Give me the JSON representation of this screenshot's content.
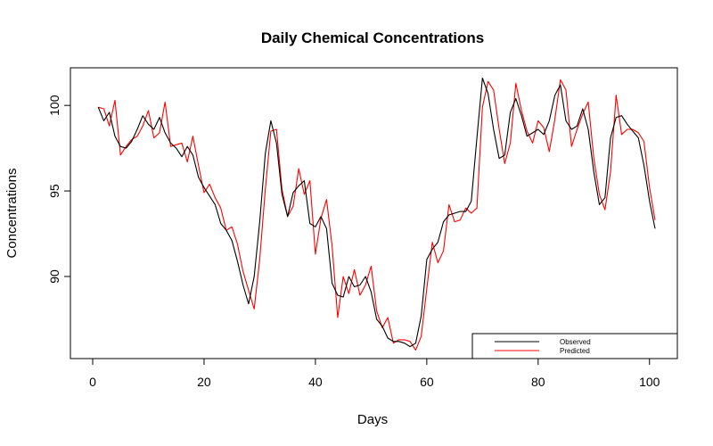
{
  "chart_data": {
    "type": "line",
    "title": "Daily Chemical Concentrations",
    "xlabel": "Days",
    "ylabel": "Concentrations",
    "xlim": [
      -4,
      105
    ],
    "ylim": [
      85.2,
      102.2
    ],
    "x_ticks": [
      0,
      20,
      40,
      60,
      80,
      100
    ],
    "y_ticks": [
      90,
      95,
      100
    ],
    "grid": false,
    "legend_position": "bottom-right",
    "x": [
      1,
      2,
      3,
      4,
      5,
      6,
      7,
      8,
      9,
      10,
      11,
      12,
      13,
      14,
      15,
      16,
      17,
      18,
      19,
      20,
      21,
      22,
      23,
      24,
      25,
      26,
      27,
      28,
      29,
      30,
      31,
      32,
      33,
      34,
      35,
      36,
      37,
      38,
      39,
      40,
      41,
      42,
      43,
      44,
      45,
      46,
      47,
      48,
      49,
      50,
      51,
      52,
      53,
      54,
      55,
      56,
      57,
      58,
      59,
      60,
      61,
      62,
      63,
      64,
      65,
      66,
      67,
      68,
      69,
      70,
      71,
      72,
      73,
      74,
      75,
      76,
      77,
      78,
      79,
      80,
      81,
      82,
      83,
      84,
      85,
      86,
      87,
      88,
      89,
      90,
      91,
      92,
      93,
      94,
      95,
      96,
      97,
      98,
      99,
      100,
      101
    ],
    "series": [
      {
        "name": "Observed",
        "color": "#000000",
        "values": [
          99.9,
          99.1,
          99.6,
          98.2,
          97.6,
          97.5,
          97.9,
          98.6,
          99.4,
          98.9,
          98.6,
          99.3,
          98.4,
          97.8,
          97.5,
          97.0,
          97.6,
          97.1,
          95.8,
          95.2,
          94.7,
          94.2,
          93.1,
          92.7,
          92.1,
          90.9,
          89.5,
          88.4,
          90.0,
          93.2,
          97.2,
          99.1,
          97.8,
          94.8,
          93.5,
          94.9,
          95.3,
          95.6,
          93.1,
          92.9,
          93.5,
          92.8,
          89.6,
          88.9,
          88.8,
          90.0,
          89.4,
          89.5,
          90.0,
          89.1,
          87.5,
          87.1,
          86.4,
          86.2,
          86.2,
          86.1,
          85.9,
          86.1,
          87.7,
          91.0,
          91.6,
          92.0,
          93.2,
          93.6,
          93.7,
          93.8,
          93.8,
          94.4,
          98.1,
          101.6,
          100.7,
          98.6,
          96.9,
          97.1,
          99.6,
          100.4,
          99.4,
          98.2,
          98.4,
          98.6,
          98.3,
          99.1,
          100.6,
          101.2,
          99.1,
          98.6,
          98.8,
          99.8,
          98.6,
          96.1,
          94.2,
          94.6,
          98.1,
          99.3,
          99.4,
          98.9,
          98.5,
          98.1,
          96.5,
          94.4,
          92.8
        ]
      },
      {
        "name": "Predicted",
        "color": "#ff0000",
        "values": [
          99.9,
          99.8,
          98.8,
          100.3,
          97.1,
          97.6,
          98.0,
          98.2,
          98.8,
          99.7,
          98.1,
          98.4,
          100.2,
          97.6,
          97.7,
          97.8,
          96.7,
          98.2,
          96.5,
          94.9,
          95.4,
          94.6,
          94.0,
          92.7,
          92.9,
          91.9,
          90.3,
          89.2,
          88.1,
          91.0,
          95.1,
          98.5,
          98.6,
          95.1,
          93.5,
          94.1,
          96.3,
          94.8,
          95.6,
          91.3,
          93.4,
          94.5,
          91.8,
          87.6,
          90.0,
          89.0,
          90.4,
          88.9,
          89.5,
          90.6,
          88.0,
          87.0,
          87.6,
          86.1,
          86.3,
          86.3,
          86.2,
          85.7,
          86.5,
          89.3,
          92.0,
          90.8,
          91.5,
          94.2,
          93.2,
          93.3,
          94.0,
          93.7,
          94.0,
          99.9,
          101.4,
          100.9,
          98.6,
          96.6,
          97.8,
          101.3,
          99.7,
          98.5,
          97.8,
          99.1,
          98.7,
          97.3,
          99.2,
          101.5,
          100.9,
          97.6,
          98.6,
          99.5,
          100.2,
          96.9,
          94.8,
          93.9,
          96.1,
          100.6,
          98.3,
          98.6,
          98.6,
          98.4,
          97.9,
          95.2,
          93.3
        ]
      }
    ]
  }
}
